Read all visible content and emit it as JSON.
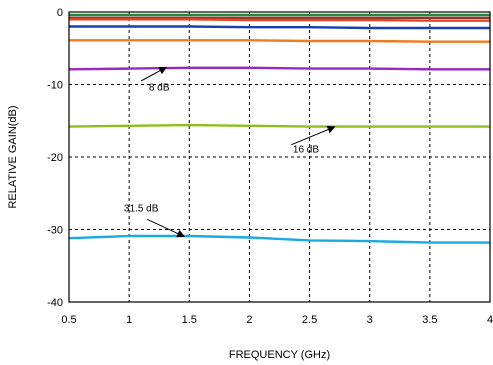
{
  "chart_data": {
    "type": "line",
    "title": "",
    "xlabel": "FREQUENCY (GHz)",
    "ylabel": "RELATIVE GAIN(dB)",
    "xlim": [
      0.5,
      4
    ],
    "ylim": [
      -40,
      0
    ],
    "xticks": [
      "0.5",
      "1",
      "1.5",
      "2",
      "2.5",
      "3",
      "3.5",
      "4"
    ],
    "yticks": [
      "0",
      "-10",
      "-20",
      "-30",
      "-40"
    ],
    "grid": true,
    "series": [
      {
        "color": "#1f8a3a",
        "x": [
          0.5,
          1,
          1.5,
          2,
          2.5,
          3,
          3.5,
          4
        ],
        "y": [
          -0.4,
          -0.4,
          -0.4,
          -0.4,
          -0.4,
          -0.4,
          -0.4,
          -0.4
        ]
      },
      {
        "color": "#8b3a2a",
        "x": [
          0.5,
          1,
          1.5,
          2,
          2.5,
          3,
          3.5,
          4
        ],
        "y": [
          -0.8,
          -0.8,
          -0.8,
          -0.8,
          -0.8,
          -0.8,
          -0.8,
          -0.8
        ]
      },
      {
        "color": "#e6452a",
        "x": [
          0.5,
          1,
          1.5,
          2,
          2.5,
          3,
          3.5,
          4
        ],
        "y": [
          -1.0,
          -1.0,
          -1.0,
          -1.1,
          -1.1,
          -1.1,
          -1.2,
          -1.2
        ]
      },
      {
        "color": "#1a3fb0",
        "x": [
          0.5,
          1,
          1.5,
          2,
          2.5,
          3,
          3.5,
          4
        ],
        "y": [
          -2.0,
          -2.0,
          -2.0,
          -2.1,
          -2.1,
          -2.2,
          -2.2,
          -2.2
        ]
      },
      {
        "color": "#f07a20",
        "x": [
          0.5,
          1,
          1.5,
          2,
          2.5,
          3,
          3.5,
          4
        ],
        "y": [
          -3.9,
          -3.9,
          -3.9,
          -3.9,
          -4.0,
          -4.0,
          -4.1,
          -4.1
        ]
      },
      {
        "color": "#9a28c0",
        "x": [
          0.5,
          1,
          1.5,
          2,
          2.5,
          3,
          3.5,
          4
        ],
        "y": [
          -7.9,
          -7.8,
          -7.7,
          -7.7,
          -7.8,
          -7.8,
          -7.9,
          -7.9
        ]
      },
      {
        "color": "#8cbf1e",
        "x": [
          0.5,
          1,
          1.5,
          2,
          2.5,
          3,
          3.5,
          4
        ],
        "y": [
          -15.8,
          -15.7,
          -15.6,
          -15.7,
          -15.8,
          -15.8,
          -15.8,
          -15.8
        ]
      },
      {
        "color": "#1aa9e0",
        "x": [
          0.5,
          1,
          1.5,
          2,
          2.5,
          3,
          3.5,
          4
        ],
        "y": [
          -31.2,
          -30.9,
          -30.9,
          -31.1,
          -31.5,
          -31.6,
          -31.8,
          -31.8
        ]
      }
    ],
    "annotations": [
      {
        "text": "8 dB",
        "text_x": 1.25,
        "text_y": -10.8,
        "arrow_x": 1.3,
        "arrow_y": -7.7,
        "tail_x": 1.1,
        "tail_y": -9.5
      },
      {
        "text": "16 dB",
        "text_x": 2.47,
        "text_y": -19.4,
        "arrow_x": 2.7,
        "arrow_y": -15.9,
        "tail_x": 2.35,
        "tail_y": -18.3
      },
      {
        "text": "31.5 dB",
        "text_x": 1.1,
        "text_y": -27.5,
        "arrow_x": 1.45,
        "arrow_y": -30.9,
        "tail_x": 1.15,
        "tail_y": -28.6
      }
    ]
  }
}
